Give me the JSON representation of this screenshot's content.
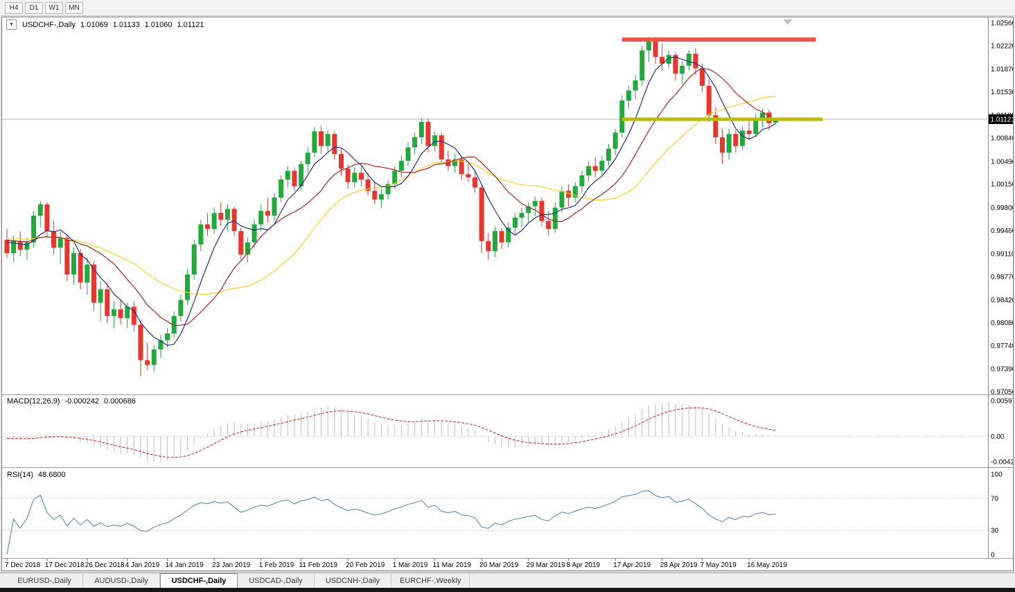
{
  "toolbar": {
    "timeframes": [
      "H4",
      "D1",
      "W1",
      "MN"
    ]
  },
  "chart": {
    "title": {
      "symbol": "USDCHF-,Daily",
      "open": "1.01069",
      "high": "1.01133",
      "low": "1.01060",
      "close": "1.01121"
    }
  },
  "colors": {
    "candle_up": "#21a93c",
    "candle_down": "#e8352e",
    "resistance_line": "#f25248",
    "support_line": "#b7bd00",
    "macd_histogram": "#bdbdbd",
    "macd_signal": "#cf2020",
    "rsi_line": "#4b7fb5",
    "current_price_line": "#b4b4b4",
    "price_badge_bg": "#000000",
    "price_badge_text": "#ffffff"
  },
  "chart_data": {
    "type": "candlestick",
    "symbol": "USDCHF",
    "timeframe": "Daily",
    "current_price": 1.01121,
    "current_price_label": "1.01121",
    "price_axis": {
      "max": 1.0256,
      "min": 0.9705,
      "labels": [
        "1.02560",
        "1.02220",
        "1.01870",
        "1.01530",
        "1.01180",
        "1.00840",
        "1.00490",
        "1.00150",
        "0.99800",
        "0.99460",
        "0.99110",
        "0.98770",
        "0.98420",
        "0.98080",
        "0.97740",
        "0.97390",
        "0.97050"
      ]
    },
    "time_axis": [
      {
        "i": 0,
        "label": "7 Dec 2018"
      },
      {
        "i": 6,
        "label": "17 Dec 2018"
      },
      {
        "i": 12,
        "label": "26 Dec 2018"
      },
      {
        "i": 18,
        "label": "4 Jan 2019"
      },
      {
        "i": 24,
        "label": "14 Jan 2019"
      },
      {
        "i": 31,
        "label": "23 Jan 2019"
      },
      {
        "i": 38,
        "label": "1 Feb 2019"
      },
      {
        "i": 44,
        "label": "11 Feb 2019"
      },
      {
        "i": 51,
        "label": "20 Feb 2019"
      },
      {
        "i": 58,
        "label": "1 Mar 2019"
      },
      {
        "i": 64,
        "label": "11 Mar 2019"
      },
      {
        "i": 71,
        "label": "20 Mar 2019"
      },
      {
        "i": 78,
        "label": "29 Mar 2019"
      },
      {
        "i": 84,
        "label": "8 Apr 2019"
      },
      {
        "i": 91,
        "label": "17 Apr 2019"
      },
      {
        "i": 98,
        "label": "28 Apr 2019"
      },
      {
        "i": 104,
        "label": "7 May 2019"
      },
      {
        "i": 111,
        "label": "16 May 2019"
      }
    ],
    "candles": [
      [
        0.9932,
        0.9948,
        0.9905,
        0.9912
      ],
      [
        0.9912,
        0.9938,
        0.9898,
        0.993
      ],
      [
        0.993,
        0.9945,
        0.9908,
        0.9917
      ],
      [
        0.9917,
        0.9935,
        0.9902,
        0.9928
      ],
      [
        0.9928,
        0.9975,
        0.992,
        0.9968
      ],
      [
        0.9968,
        0.999,
        0.995,
        0.9985
      ],
      [
        0.9985,
        0.9988,
        0.9935,
        0.9945
      ],
      [
        0.9945,
        0.996,
        0.991,
        0.992
      ],
      [
        0.992,
        0.9945,
        0.9895,
        0.9935
      ],
      [
        0.9935,
        0.994,
        0.987,
        0.988
      ],
      [
        0.988,
        0.992,
        0.9865,
        0.9912
      ],
      [
        0.9912,
        0.9918,
        0.9858,
        0.9868
      ],
      [
        0.9868,
        0.9905,
        0.985,
        0.9895
      ],
      [
        0.9895,
        0.99,
        0.9825,
        0.9838
      ],
      [
        0.9838,
        0.987,
        0.981,
        0.9858
      ],
      [
        0.9858,
        0.9868,
        0.9808,
        0.9818
      ],
      [
        0.9818,
        0.984,
        0.98,
        0.9828
      ],
      [
        0.9828,
        0.9842,
        0.9805,
        0.9815
      ],
      [
        0.9815,
        0.9838,
        0.98,
        0.9832
      ],
      [
        0.9832,
        0.984,
        0.9795,
        0.9805
      ],
      [
        0.9805,
        0.9812,
        0.9728,
        0.9752
      ],
      [
        0.9752,
        0.9778,
        0.9738,
        0.9745
      ],
      [
        0.9745,
        0.9775,
        0.9735,
        0.9768
      ],
      [
        0.9768,
        0.979,
        0.9755,
        0.9782
      ],
      [
        0.9782,
        0.98,
        0.977,
        0.9792
      ],
      [
        0.9792,
        0.9825,
        0.9785,
        0.9818
      ],
      [
        0.9818,
        0.985,
        0.981,
        0.9842
      ],
      [
        0.9842,
        0.9888,
        0.9835,
        0.988
      ],
      [
        0.988,
        0.9932,
        0.9872,
        0.9925
      ],
      [
        0.9925,
        0.9962,
        0.9915,
        0.9955
      ],
      [
        0.9955,
        0.9972,
        0.9938,
        0.9948
      ],
      [
        0.9948,
        0.998,
        0.994,
        0.9972
      ],
      [
        0.9972,
        0.9988,
        0.9952,
        0.9962
      ],
      [
        0.9962,
        0.9985,
        0.9945,
        0.9978
      ],
      [
        0.9978,
        0.9982,
        0.9938,
        0.9945
      ],
      [
        0.9945,
        0.995,
        0.9902,
        0.991
      ],
      [
        0.991,
        0.9935,
        0.9898,
        0.9928
      ],
      [
        0.9928,
        0.9962,
        0.992,
        0.9955
      ],
      [
        0.9955,
        0.9985,
        0.9945,
        0.9975
      ],
      [
        0.9975,
        0.9995,
        0.9958,
        0.9968
      ],
      [
        0.9968,
        1.0002,
        0.996,
        0.9995
      ],
      [
        0.9995,
        1.0028,
        0.9988,
        1.0022
      ],
      [
        1.0022,
        1.0042,
        1.001,
        1.0035
      ],
      [
        1.0035,
        1.004,
        1.0005,
        1.0012
      ],
      [
        1.0012,
        1.005,
        1.0005,
        1.0045
      ],
      [
        1.0045,
        1.007,
        1.0032,
        1.0062
      ],
      [
        1.0062,
        1.01,
        1.0055,
        1.0094
      ],
      [
        1.0094,
        1.0102,
        1.006,
        1.0072
      ],
      [
        1.0072,
        1.0096,
        1.0062,
        1.009
      ],
      [
        1.009,
        1.0094,
        1.0052,
        1.006
      ],
      [
        1.006,
        1.0068,
        1.0028,
        1.0038
      ],
      [
        1.0038,
        1.0045,
        1.0008,
        1.0018
      ],
      [
        1.0018,
        1.004,
        1.001,
        1.0032
      ],
      [
        1.0032,
        1.0042,
        1.0012,
        1.0022
      ],
      [
        1.0022,
        1.0032,
        0.9998,
        1.0005
      ],
      [
        1.0005,
        1.0018,
        0.9985,
        0.9992
      ],
      [
        0.9992,
        1.0008,
        0.998,
        1.0
      ],
      [
        1.0,
        1.0022,
        0.9992,
        1.0015
      ],
      [
        1.0015,
        1.0042,
        1.0008,
        1.0035
      ],
      [
        1.0035,
        1.0058,
        1.0025,
        1.005
      ],
      [
        1.005,
        1.0078,
        1.0042,
        1.007
      ],
      [
        1.007,
        1.0092,
        1.006,
        1.0085
      ],
      [
        1.0085,
        1.0114,
        1.0075,
        1.0108
      ],
      [
        1.0108,
        1.0113,
        1.0062,
        1.0072
      ],
      [
        1.0072,
        1.0094,
        1.0064,
        1.0088
      ],
      [
        1.0088,
        1.0092,
        1.0045,
        1.0052
      ],
      [
        1.0052,
        1.0065,
        1.0035,
        1.0042
      ],
      [
        1.0042,
        1.006,
        1.0032,
        1.0052
      ],
      [
        1.0052,
        1.0056,
        1.0022,
        1.003
      ],
      [
        1.003,
        1.0046,
        1.0018,
        1.0025
      ],
      [
        1.0025,
        1.0035,
        1.0002,
        1.001
      ],
      [
        1.001,
        1.0016,
        0.9912,
        0.993
      ],
      [
        0.993,
        0.9942,
        0.9902,
        0.9915
      ],
      [
        0.9915,
        0.9952,
        0.9906,
        0.9945
      ],
      [
        0.9945,
        0.995,
        0.9918,
        0.9928
      ],
      [
        0.9928,
        0.9958,
        0.992,
        0.995
      ],
      [
        0.995,
        0.9972,
        0.994,
        0.9965
      ],
      [
        0.9965,
        0.998,
        0.995,
        0.9972
      ],
      [
        0.9972,
        0.9988,
        0.9958,
        0.9982
      ],
      [
        0.9982,
        0.9996,
        0.9968,
        0.999
      ],
      [
        0.999,
        0.9995,
        0.9952,
        0.996
      ],
      [
        0.996,
        0.9975,
        0.9938,
        0.9948
      ],
      [
        0.9948,
        0.9988,
        0.9942,
        0.998
      ],
      [
        0.998,
        1.0012,
        0.9972,
        1.0005
      ],
      [
        1.0005,
        1.0015,
        0.9982,
        0.9995
      ],
      [
        0.9995,
        1.0018,
        0.9988,
        1.0012
      ],
      [
        1.0012,
        1.0035,
        1.0002,
        1.0028
      ],
      [
        1.0028,
        1.005,
        1.0018,
        1.0042
      ],
      [
        1.0042,
        1.0055,
        1.0025,
        1.0035
      ],
      [
        1.0035,
        1.0058,
        1.0028,
        1.005
      ],
      [
        1.005,
        1.0075,
        1.0042,
        1.0068
      ],
      [
        1.0068,
        1.0098,
        1.0058,
        1.0092
      ],
      [
        1.0092,
        1.0148,
        1.0085,
        1.014
      ],
      [
        1.014,
        1.0162,
        1.0128,
        1.0155
      ],
      [
        1.0155,
        1.0178,
        1.0142,
        1.017
      ],
      [
        1.017,
        1.0222,
        1.0162,
        1.0215
      ],
      [
        1.0215,
        1.0235,
        1.0198,
        1.0228
      ],
      [
        1.0228,
        1.0235,
        1.0195,
        1.0205
      ],
      [
        1.0205,
        1.0225,
        1.0185,
        1.0195
      ],
      [
        1.0195,
        1.0215,
        1.0188,
        1.0208
      ],
      [
        1.0208,
        1.0212,
        1.017,
        1.018
      ],
      [
        1.018,
        1.0198,
        1.0165,
        1.0192
      ],
      [
        1.0192,
        1.0215,
        1.0185,
        1.021
      ],
      [
        1.021,
        1.0218,
        1.0178,
        1.0188
      ],
      [
        1.0188,
        1.0195,
        1.0152,
        1.0162
      ],
      [
        1.0162,
        1.0172,
        1.0108,
        1.0118
      ],
      [
        1.0118,
        1.013,
        1.0075,
        1.0085
      ],
      [
        1.0085,
        1.0098,
        1.0045,
        1.0062
      ],
      [
        1.0062,
        1.0098,
        1.0052,
        1.009
      ],
      [
        1.009,
        1.0096,
        1.0062,
        1.0072
      ],
      [
        1.0072,
        1.0102,
        1.0066,
        1.0095
      ],
      [
        1.0095,
        1.011,
        1.0082,
        1.009
      ],
      [
        1.009,
        1.012,
        1.0085,
        1.0112
      ],
      [
        1.0112,
        1.0128,
        1.01,
        1.0122
      ],
      [
        1.0122,
        1.0126,
        1.0096,
        1.0106
      ],
      [
        1.01069,
        1.01133,
        1.0106,
        1.01121
      ]
    ],
    "moving_averages": [
      {
        "name": "slow",
        "period": 24,
        "color": "#ffd21e"
      },
      {
        "name": "medium",
        "period": 13,
        "color": "#b22222"
      },
      {
        "name": "fast",
        "period": 6,
        "color": "#232e8a"
      }
    ],
    "resistance_line": {
      "price": 1.0231,
      "from_idx": 92,
      "to_idx": 121
    },
    "support_line": {
      "price": 1.0112,
      "from_idx": 92,
      "to_idx": 122
    },
    "macd": {
      "label": "MACD(12,26,9)",
      "main_value": "-0.000242",
      "signal_value": "0.000686",
      "fast": 12,
      "slow": 26,
      "signal": 9,
      "axis": [
        {
          "label": "0.00597",
          "value": 0.00597
        },
        {
          "label": "0.00",
          "value": 0
        },
        {
          "label": "-0.004243",
          "value": -0.004243
        }
      ]
    },
    "rsi": {
      "label": "RSI(14)",
      "value": "48.6800",
      "period": 14,
      "axis": [
        {
          "label": "100",
          "value": 100
        },
        {
          "label": "70",
          "value": 70
        },
        {
          "label": "30",
          "value": 30
        },
        {
          "label": "0",
          "value": 0
        }
      ],
      "levels": [
        70,
        30
      ]
    }
  },
  "tabs": [
    {
      "label": "EURUSD-,Daily",
      "active": false
    },
    {
      "label": "AUDUSD-,Daily",
      "active": false
    },
    {
      "label": "USDCHF-,Daily",
      "active": true
    },
    {
      "label": "USDCAD-,Daily",
      "active": false
    },
    {
      "label": "USDCNH-,Daily",
      "active": false
    },
    {
      "label": "EURCHF-,Weekly",
      "active": false
    }
  ]
}
